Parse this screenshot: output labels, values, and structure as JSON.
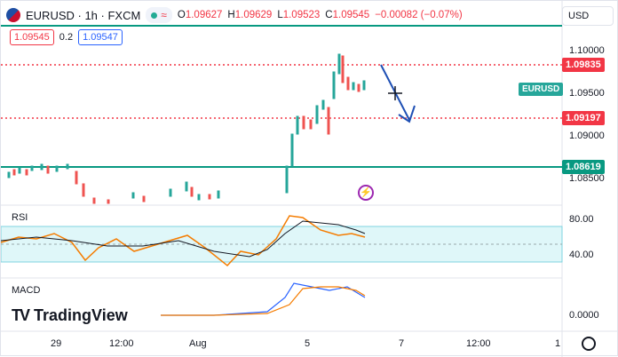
{
  "header": {
    "symbol": "EURUSD · 1h · FXCM",
    "ohlc": {
      "open_label": "O",
      "open": "1.09627",
      "high_label": "H",
      "high": "1.09629",
      "low_label": "L",
      "low": "1.09523",
      "close_label": "C",
      "close": "1.09545",
      "change": "−0.00082 (−0.07%)"
    },
    "sell_price": "1.09545",
    "spread": "0.2",
    "buy_price": "1.09547",
    "currency": "USD"
  },
  "price_axis": {
    "labels": [
      "1.10000",
      "1.09500",
      "1.09000",
      "1.08500"
    ],
    "tags": {
      "level_high": "1.09835",
      "level_mid": "1.09197",
      "level_low": "1.08619",
      "symbol_tag": "EURUSD"
    }
  },
  "rsi": {
    "label": "RSI",
    "levels": [
      "80.00",
      "40.00"
    ]
  },
  "macd": {
    "label": "MACD",
    "levels": [
      "0.0000"
    ]
  },
  "time_axis": [
    "29",
    "12:00",
    "Aug",
    "5",
    "7",
    "12:00",
    "1"
  ],
  "branding": {
    "logo_text": "TradingView"
  },
  "colors": {
    "up": "#26a69a",
    "down": "#ef5350",
    "level_green": "#089981",
    "level_red": "#f23645",
    "arrow": "#1e4fb4"
  }
}
